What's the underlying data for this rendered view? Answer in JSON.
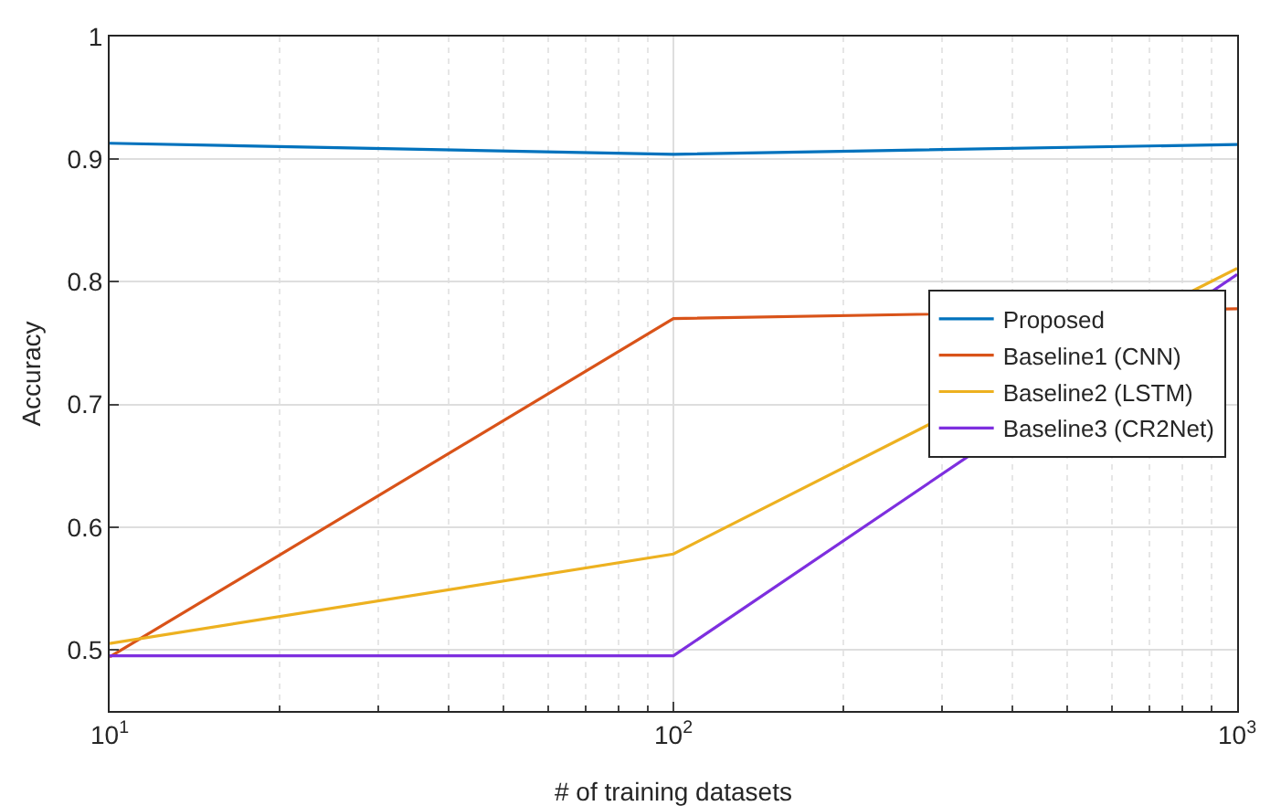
{
  "chart_data": {
    "type": "line",
    "xlabel": "# of training datasets",
    "ylabel": "Accuracy",
    "x": [
      10,
      100,
      1000
    ],
    "log": "x",
    "xlim": [
      10,
      1000
    ],
    "xticks": [
      {
        "value": 10,
        "label": "10$^{1}$"
      },
      {
        "value": 100,
        "label": "10$^{2}$"
      },
      {
        "value": 1000,
        "label": "10$^{3}$"
      }
    ],
    "ylim": [
      0.45,
      1
    ],
    "yticks": [
      0.5,
      0.6,
      0.7,
      0.8,
      0.9,
      1
    ],
    "grid": true,
    "legend": "right",
    "marker": "none",
    "line_style": "solid",
    "series": [
      {
        "name": "Proposed",
        "color": "#0072bd",
        "values": [
          0.913,
          0.904,
          0.912
        ]
      },
      {
        "name": "Baseline1 (CNN)",
        "color": "#d95319",
        "values": [
          0.494,
          0.77,
          0.778
        ]
      },
      {
        "name": "Baseline2 (LSTM)",
        "color": "#edb120",
        "values": [
          0.505,
          0.578,
          0.811
        ]
      },
      {
        "name": "Baseline3 (CR2Net)",
        "color": "#7e2fdf",
        "values": [
          0.495,
          0.495,
          0.806
        ]
      }
    ]
  }
}
